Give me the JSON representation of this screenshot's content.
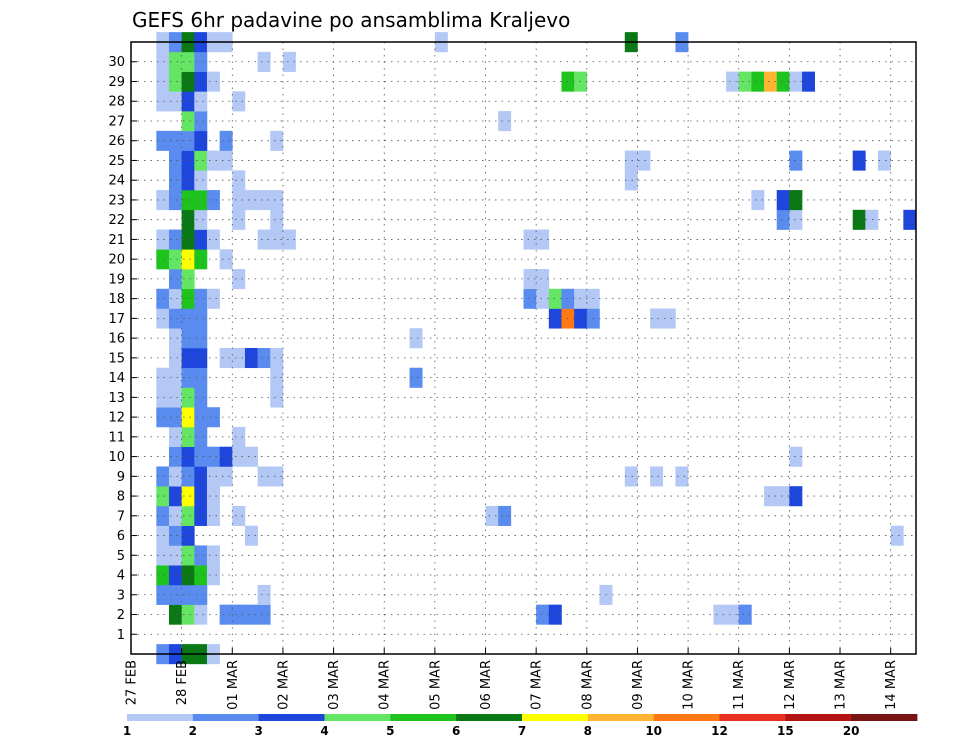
{
  "chart_data": {
    "type": "heatmap",
    "title": "GEFS 6hr padavine po ansamblima Kraljevo",
    "xlabel": "",
    "ylabel": "",
    "x_tick_labels": [
      "27 FEB",
      "28 FEB",
      "01 MAR",
      "02 MAR",
      "03 MAR",
      "04 MAR",
      "05 MAR",
      "06 MAR",
      "07 MAR",
      "08 MAR",
      "09 MAR",
      "10 MAR",
      "11 MAR",
      "12 MAR",
      "13 MAR",
      "14 MAR"
    ],
    "y_tick_labels": [
      "1",
      "2",
      "3",
      "4",
      "5",
      "6",
      "7",
      "8",
      "9",
      "10",
      "11",
      "12",
      "13",
      "14",
      "15",
      "16",
      "17",
      "18",
      "19",
      "20",
      "21",
      "22",
      "23",
      "24",
      "25",
      "26",
      "27",
      "28",
      "29",
      "30"
    ],
    "xlim_days": [
      0,
      15.5
    ],
    "ylim_members": [
      0,
      31
    ],
    "time_step_hours": 6,
    "grid": true,
    "grid_style": "dotted",
    "colorbar": {
      "levels": [
        "1",
        "2",
        "3",
        "4",
        "5",
        "6",
        "7",
        "8",
        "10",
        "12",
        "15",
        "20"
      ],
      "colors": [
        "#b4c8f5",
        "#5a8cf0",
        "#1e46dc",
        "#64e664",
        "#1ec31e",
        "#0a7814",
        "#ffff00",
        "#ffb432",
        "#ff7814",
        "#e6321e",
        "#b41414",
        "#781414"
      ],
      "placement": "bottom"
    },
    "cells": [
      [
        0.5,
        0,
        1
      ],
      [
        0.75,
        0,
        2
      ],
      [
        1.0,
        0,
        5
      ],
      [
        1.25,
        0,
        5
      ],
      [
        1.5,
        0,
        0
      ],
      [
        0.75,
        2,
        5
      ],
      [
        1.0,
        2,
        3
      ],
      [
        1.25,
        2,
        0
      ],
      [
        1.75,
        2,
        1
      ],
      [
        2.0,
        2,
        1
      ],
      [
        2.25,
        2,
        1
      ],
      [
        2.5,
        2,
        1
      ],
      [
        8.0,
        2,
        1
      ],
      [
        8.25,
        2,
        2
      ],
      [
        11.5,
        2,
        0
      ],
      [
        11.75,
        2,
        0
      ],
      [
        12.0,
        2,
        1
      ],
      [
        0.5,
        3,
        1
      ],
      [
        0.75,
        3,
        1
      ],
      [
        1.0,
        3,
        1
      ],
      [
        1.25,
        3,
        1
      ],
      [
        2.5,
        3,
        0
      ],
      [
        9.25,
        3,
        0
      ],
      [
        0.5,
        4,
        4
      ],
      [
        0.75,
        4,
        2
      ],
      [
        1.0,
        4,
        5
      ],
      [
        1.25,
        4,
        4
      ],
      [
        1.5,
        4,
        0
      ],
      [
        0.5,
        5,
        0
      ],
      [
        0.75,
        5,
        0
      ],
      [
        1.0,
        5,
        3
      ],
      [
        1.25,
        5,
        1
      ],
      [
        1.5,
        5,
        0
      ],
      [
        0.5,
        6,
        0
      ],
      [
        0.75,
        6,
        1
      ],
      [
        1.0,
        6,
        2
      ],
      [
        2.25,
        6,
        0
      ],
      [
        15.0,
        6,
        0
      ],
      [
        0.5,
        7,
        1
      ],
      [
        0.75,
        7,
        0
      ],
      [
        1.0,
        7,
        3
      ],
      [
        1.25,
        7,
        2
      ],
      [
        1.5,
        7,
        0
      ],
      [
        2.0,
        7,
        0
      ],
      [
        7.0,
        7,
        0
      ],
      [
        7.25,
        7,
        1
      ],
      [
        0.5,
        8,
        3
      ],
      [
        0.75,
        8,
        2
      ],
      [
        1.0,
        8,
        6
      ],
      [
        1.25,
        8,
        2
      ],
      [
        1.5,
        8,
        0
      ],
      [
        12.5,
        8,
        0
      ],
      [
        12.75,
        8,
        0
      ],
      [
        13.0,
        8,
        2
      ],
      [
        0.5,
        9,
        1
      ],
      [
        0.75,
        9,
        0
      ],
      [
        1.0,
        9,
        1
      ],
      [
        1.25,
        9,
        2
      ],
      [
        1.5,
        9,
        0
      ],
      [
        1.75,
        9,
        0
      ],
      [
        2.5,
        9,
        0
      ],
      [
        2.75,
        9,
        0
      ],
      [
        9.75,
        9,
        0
      ],
      [
        10.25,
        9,
        0
      ],
      [
        10.75,
        9,
        0
      ],
      [
        0.75,
        10,
        1
      ],
      [
        1.0,
        10,
        2
      ],
      [
        1.25,
        10,
        1
      ],
      [
        1.5,
        10,
        1
      ],
      [
        1.75,
        10,
        2
      ],
      [
        2.0,
        10,
        0
      ],
      [
        2.25,
        10,
        0
      ],
      [
        13.0,
        10,
        0
      ],
      [
        0.75,
        11,
        0
      ],
      [
        1.0,
        11,
        3
      ],
      [
        1.25,
        11,
        1
      ],
      [
        2.0,
        11,
        0
      ],
      [
        0.5,
        12,
        1
      ],
      [
        0.75,
        12,
        1
      ],
      [
        1.0,
        12,
        6
      ],
      [
        1.25,
        12,
        1
      ],
      [
        1.5,
        12,
        1
      ],
      [
        0.5,
        13,
        0
      ],
      [
        0.75,
        13,
        0
      ],
      [
        1.0,
        13,
        3
      ],
      [
        1.25,
        13,
        1
      ],
      [
        2.75,
        13,
        0
      ],
      [
        0.5,
        14,
        0
      ],
      [
        0.75,
        14,
        0
      ],
      [
        1.0,
        14,
        1
      ],
      [
        1.25,
        14,
        1
      ],
      [
        2.75,
        14,
        0
      ],
      [
        5.5,
        14,
        1
      ],
      [
        0.75,
        15,
        0
      ],
      [
        1.0,
        15,
        2
      ],
      [
        1.25,
        15,
        2
      ],
      [
        1.75,
        15,
        0
      ],
      [
        2.0,
        15,
        0
      ],
      [
        2.25,
        15,
        2
      ],
      [
        2.5,
        15,
        1
      ],
      [
        2.75,
        15,
        0
      ],
      [
        0.75,
        16,
        0
      ],
      [
        1.0,
        16,
        1
      ],
      [
        1.25,
        16,
        1
      ],
      [
        5.5,
        16,
        0
      ],
      [
        0.5,
        17,
        0
      ],
      [
        0.75,
        17,
        1
      ],
      [
        1.0,
        17,
        1
      ],
      [
        1.25,
        17,
        1
      ],
      [
        8.25,
        17,
        2
      ],
      [
        8.5,
        17,
        8
      ],
      [
        8.75,
        17,
        2
      ],
      [
        9.0,
        17,
        1
      ],
      [
        10.25,
        17,
        0
      ],
      [
        10.5,
        17,
        0
      ],
      [
        0.5,
        18,
        1
      ],
      [
        0.75,
        18,
        0
      ],
      [
        1.0,
        18,
        4
      ],
      [
        1.25,
        18,
        1
      ],
      [
        1.5,
        18,
        0
      ],
      [
        7.75,
        18,
        1
      ],
      [
        8.0,
        18,
        0
      ],
      [
        8.25,
        18,
        3
      ],
      [
        8.5,
        18,
        1
      ],
      [
        8.75,
        18,
        0
      ],
      [
        9.0,
        18,
        0
      ],
      [
        0.75,
        19,
        1
      ],
      [
        1.0,
        19,
        3
      ],
      [
        2.0,
        19,
        0
      ],
      [
        7.75,
        19,
        0
      ],
      [
        8.0,
        19,
        0
      ],
      [
        0.5,
        20,
        4
      ],
      [
        0.75,
        20,
        3
      ],
      [
        1.0,
        20,
        6
      ],
      [
        1.25,
        20,
        4
      ],
      [
        1.75,
        20,
        0
      ],
      [
        0.5,
        21,
        0
      ],
      [
        0.75,
        21,
        1
      ],
      [
        1.0,
        21,
        5
      ],
      [
        1.25,
        21,
        2
      ],
      [
        1.5,
        21,
        0
      ],
      [
        2.5,
        21,
        0
      ],
      [
        2.75,
        21,
        0
      ],
      [
        3.0,
        21,
        0
      ],
      [
        7.75,
        21,
        0
      ],
      [
        8.0,
        21,
        0
      ],
      [
        1.0,
        22,
        5
      ],
      [
        1.25,
        22,
        0
      ],
      [
        2.0,
        22,
        0
      ],
      [
        2.75,
        22,
        0
      ],
      [
        12.75,
        22,
        1
      ],
      [
        13.0,
        22,
        0
      ],
      [
        14.25,
        22,
        5
      ],
      [
        14.5,
        22,
        0
      ],
      [
        15.25,
        22,
        2
      ],
      [
        0.5,
        23,
        0
      ],
      [
        0.75,
        23,
        1
      ],
      [
        1.0,
        23,
        4
      ],
      [
        1.25,
        23,
        4
      ],
      [
        1.5,
        23,
        1
      ],
      [
        2.0,
        23,
        0
      ],
      [
        2.25,
        23,
        0
      ],
      [
        2.5,
        23,
        0
      ],
      [
        2.75,
        23,
        0
      ],
      [
        12.25,
        23,
        0
      ],
      [
        12.75,
        23,
        2
      ],
      [
        13.0,
        23,
        5
      ],
      [
        0.75,
        24,
        1
      ],
      [
        1.0,
        24,
        2
      ],
      [
        1.25,
        24,
        0
      ],
      [
        2.0,
        24,
        0
      ],
      [
        9.75,
        24,
        0
      ],
      [
        0.75,
        25,
        1
      ],
      [
        1.0,
        25,
        2
      ],
      [
        1.25,
        25,
        3
      ],
      [
        1.5,
        25,
        0
      ],
      [
        1.75,
        25,
        0
      ],
      [
        9.75,
        25,
        0
      ],
      [
        10.0,
        25,
        0
      ],
      [
        13.0,
        25,
        1
      ],
      [
        14.25,
        25,
        2
      ],
      [
        14.75,
        25,
        0
      ],
      [
        0.5,
        26,
        1
      ],
      [
        0.75,
        26,
        1
      ],
      [
        1.0,
        26,
        1
      ],
      [
        1.25,
        26,
        2
      ],
      [
        1.75,
        26,
        1
      ],
      [
        2.75,
        26,
        0
      ],
      [
        1.0,
        27,
        3
      ],
      [
        1.25,
        27,
        1
      ],
      [
        7.25,
        27,
        0
      ],
      [
        0.5,
        28,
        0
      ],
      [
        0.75,
        28,
        0
      ],
      [
        1.0,
        28,
        2
      ],
      [
        1.25,
        28,
        0
      ],
      [
        2.0,
        28,
        0
      ],
      [
        0.5,
        29,
        0
      ],
      [
        0.75,
        29,
        3
      ],
      [
        1.0,
        29,
        5
      ],
      [
        1.25,
        29,
        2
      ],
      [
        1.5,
        29,
        0
      ],
      [
        8.5,
        29,
        4
      ],
      [
        8.75,
        29,
        3
      ],
      [
        11.75,
        29,
        0
      ],
      [
        12.0,
        29,
        3
      ],
      [
        12.25,
        29,
        4
      ],
      [
        12.5,
        29,
        7
      ],
      [
        12.75,
        29,
        4
      ],
      [
        13.0,
        29,
        0
      ],
      [
        13.25,
        29,
        2
      ],
      [
        0.5,
        30,
        0
      ],
      [
        0.75,
        30,
        3
      ],
      [
        1.0,
        30,
        3
      ],
      [
        1.25,
        30,
        1
      ],
      [
        2.5,
        30,
        0
      ],
      [
        3.0,
        30,
        0
      ],
      [
        0.5,
        31,
        0
      ],
      [
        0.75,
        31,
        1
      ],
      [
        1.0,
        31,
        5
      ],
      [
        1.25,
        31,
        2
      ],
      [
        1.5,
        31,
        0
      ],
      [
        1.75,
        31,
        0
      ],
      [
        6.0,
        31,
        0
      ],
      [
        9.75,
        31,
        5
      ],
      [
        10.75,
        31,
        1
      ]
    ]
  }
}
